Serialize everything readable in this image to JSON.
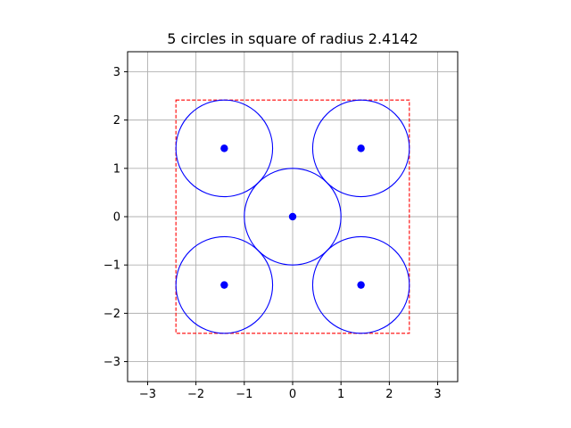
{
  "chart_data": {
    "type": "scatter",
    "title": "5 circles in square of radius 2.4142",
    "xlabel": "",
    "ylabel": "",
    "xlim": [
      -3.4142,
      3.4142
    ],
    "ylim": [
      -3.4142,
      3.4142
    ],
    "xticks": [
      -3,
      -2,
      -1,
      0,
      1,
      2,
      3
    ],
    "yticks": [
      -3,
      -2,
      -1,
      0,
      1,
      2,
      3
    ],
    "xtick_labels": [
      "−3",
      "−2",
      "−1",
      "0",
      "1",
      "2",
      "3"
    ],
    "ytick_labels": [
      "−3",
      "−2",
      "−1",
      "0",
      "1",
      "2",
      "3"
    ],
    "grid": true,
    "aspect": "equal",
    "square": {
      "half_side": 2.4142,
      "color": "#ff0000",
      "style": "dashed"
    },
    "circle_radius": 1.0,
    "centers": [
      {
        "x": -1.4142,
        "y": 1.4142
      },
      {
        "x": 1.4142,
        "y": 1.4142
      },
      {
        "x": 0.0,
        "y": 0.0
      },
      {
        "x": -1.4142,
        "y": -1.4142
      },
      {
        "x": 1.4142,
        "y": -1.4142
      }
    ],
    "colors": {
      "circles": "#0000ff",
      "points": "#0000ff",
      "grid": "#b0b0b0"
    }
  }
}
